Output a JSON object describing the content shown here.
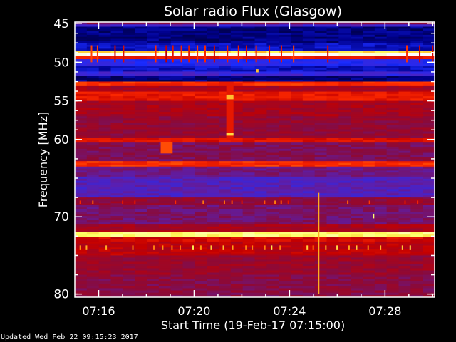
{
  "chart_data": {
    "type": "heatmap",
    "title": "Solar radio Flux (Glasgow)",
    "xlabel": "Start Time (19-Feb-17 07:15:00)",
    "ylabel": "Frequency [MHz]",
    "xlim": [
      "07:15:00",
      "07:30:05"
    ],
    "ylim": [
      80.4,
      44.8
    ],
    "y_inverted": true,
    "x_ticks": [
      "07:16",
      "07:20",
      "07:24",
      "07:28"
    ],
    "x_tick_minutes": [
      16,
      20,
      24,
      28
    ],
    "y_ticks": [
      45,
      50,
      55,
      60,
      70,
      80
    ],
    "y_tick_labels": [
      "45",
      "50",
      "55",
      "60",
      "70",
      "80"
    ],
    "colormap": [
      "#000010",
      "#00008c",
      "#1a2cff",
      "#5a1fb0",
      "#8a0a3a",
      "#c40000",
      "#ff2a00",
      "#ff9a10",
      "#ffff60",
      "#ffffff"
    ],
    "frequency_bands": [
      {
        "f": [
          44.8,
          45.1
        ],
        "level": 0.42
      },
      {
        "f": [
          45.1,
          45.4
        ],
        "level": 0.3
      },
      {
        "f": [
          45.4,
          47.5
        ],
        "level": 0.1
      },
      {
        "f": [
          47.5,
          48.5
        ],
        "level": 0.16
      },
      {
        "f": [
          48.5,
          48.8
        ],
        "level": 0.85
      },
      {
        "f": [
          48.8,
          49.2
        ],
        "level": 1.0
      },
      {
        "f": [
          49.2,
          49.6
        ],
        "level": 0.62
      },
      {
        "f": [
          49.6,
          50.5
        ],
        "level": 0.24
      },
      {
        "f": [
          50.5,
          51.2
        ],
        "level": 0.16
      },
      {
        "f": [
          51.2,
          51.8
        ],
        "level": 0.28
      },
      {
        "f": [
          51.8,
          52.5
        ],
        "level": 0.1
      },
      {
        "f": [
          52.5,
          53.0
        ],
        "level": 0.66
      },
      {
        "f": [
          53.0,
          53.8
        ],
        "level": 0.5
      },
      {
        "f": [
          53.8,
          55.0
        ],
        "level": 0.62
      },
      {
        "f": [
          55.0,
          57.0
        ],
        "level": 0.5
      },
      {
        "f": [
          57.0,
          59.8
        ],
        "level": 0.46
      },
      {
        "f": [
          59.8,
          60.4
        ],
        "level": 0.6
      },
      {
        "f": [
          60.4,
          62.8
        ],
        "level": 0.42
      },
      {
        "f": [
          62.8,
          63.5
        ],
        "level": 0.66
      },
      {
        "f": [
          63.5,
          64.8
        ],
        "level": 0.38
      },
      {
        "f": [
          64.8,
          67.5
        ],
        "level": 0.32
      },
      {
        "f": [
          67.5,
          68.5
        ],
        "level": 0.46
      },
      {
        "f": [
          68.5,
          71.0
        ],
        "level": 0.4
      },
      {
        "f": [
          71.0,
          72.0
        ],
        "level": 0.5
      },
      {
        "f": [
          72.0,
          72.6
        ],
        "level": 0.9
      },
      {
        "f": [
          72.6,
          73.2
        ],
        "level": 0.58
      },
      {
        "f": [
          73.2,
          75.0
        ],
        "level": 0.54
      },
      {
        "f": [
          75.0,
          77.5
        ],
        "level": 0.47
      },
      {
        "f": [
          77.5,
          80.4
        ],
        "level": 0.44
      }
    ],
    "periodic_spikes": [
      {
        "f": [
          47.8,
          50.0
        ],
        "level": 0.62
      },
      {
        "f": [
          67.9,
          68.4
        ],
        "level": 0.68
      },
      {
        "f": [
          73.7,
          74.3
        ],
        "level": 0.8
      }
    ],
    "bursts": [
      {
        "t": [
          6.35,
          6.65
        ],
        "f": [
          52.5,
          60.0
        ],
        "level": 0.62
      },
      {
        "t": [
          6.35,
          6.65
        ],
        "f": [
          54.2,
          54.8
        ],
        "level": 0.82
      },
      {
        "t": [
          6.35,
          6.65
        ],
        "f": [
          59.1,
          59.5
        ],
        "level": 0.85
      },
      {
        "t": [
          7.6,
          7.7
        ],
        "f": [
          50.9,
          51.3
        ],
        "level": 0.82
      },
      {
        "t": [
          10.2,
          10.25
        ],
        "f": [
          66.9,
          80.0
        ],
        "level": 0.8
      },
      {
        "t": [
          12.5,
          12.55
        ],
        "f": [
          69.6,
          70.2
        ],
        "level": 0.9
      },
      {
        "t": [
          3.6,
          4.1
        ],
        "f": [
          60.3,
          61.8
        ],
        "level": 0.7
      }
    ]
  },
  "footer": {
    "updated": "Updated Wed Feb 22 09:15:23 2017"
  }
}
